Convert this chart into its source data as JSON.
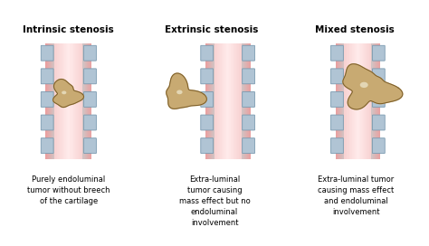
{
  "titles": [
    "Intrinsic stenosis",
    "Extrinsic stenosis",
    "Mixed stenosis"
  ],
  "descriptions": [
    "Purely endoluminal\ntumor without breech\nof the cartilage",
    "Extra-luminal\ntumor causing\nmass effect but no\nendoluminal\ninvolvement",
    "Extra-luminal tumor\ncausing mass effect\nand endoluminal\ninvolvement"
  ],
  "title_fontsize": 7.5,
  "desc_fontsize": 6.0,
  "tumor_color": "#c8aa72",
  "tumor_edge_color": "#7a5c28",
  "highlight_color": "#e8dfc0",
  "airway_pink": "#f0b8b8",
  "airway_center": "#fcdcdc",
  "wall_pink": "#e8a0a0",
  "cartilage_fill": "#b0c4d4",
  "cartilage_edge": "#7a9ab0"
}
